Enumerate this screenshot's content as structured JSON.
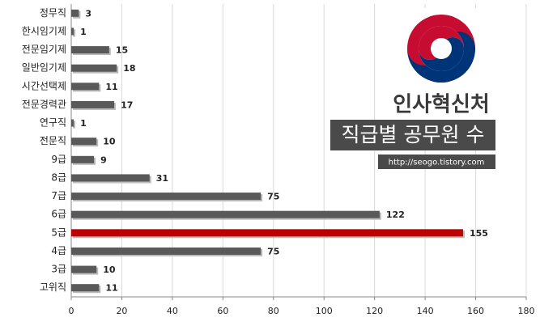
{
  "chart_data": {
    "type": "hbar",
    "organization": "인사혁신처",
    "title": "직급별 공무원 수",
    "url": "http://seogo.tistory.com",
    "categories": [
      "정무직",
      "한시임기제",
      "전문임기제",
      "일반임기제",
      "시간선택제",
      "전문경력관",
      "연구직",
      "전문직",
      "9급",
      "8급",
      "7급",
      "6급",
      "5급",
      "4급",
      "3급",
      "고위직"
    ],
    "values": [
      3,
      1,
      15,
      18,
      11,
      17,
      1,
      10,
      9,
      31,
      75,
      122,
      155,
      75,
      10,
      11
    ],
    "colors": [
      "#595959",
      "#595959",
      "#595959",
      "#595959",
      "#595959",
      "#595959",
      "#595959",
      "#595959",
      "#595959",
      "#595959",
      "#595959",
      "#595959",
      "#c00000",
      "#595959",
      "#595959",
      "#595959"
    ],
    "xlim": [
      0,
      180
    ],
    "xticks": [
      0,
      20,
      40,
      60,
      80,
      100,
      120,
      140,
      160,
      180
    ],
    "grid": true
  }
}
